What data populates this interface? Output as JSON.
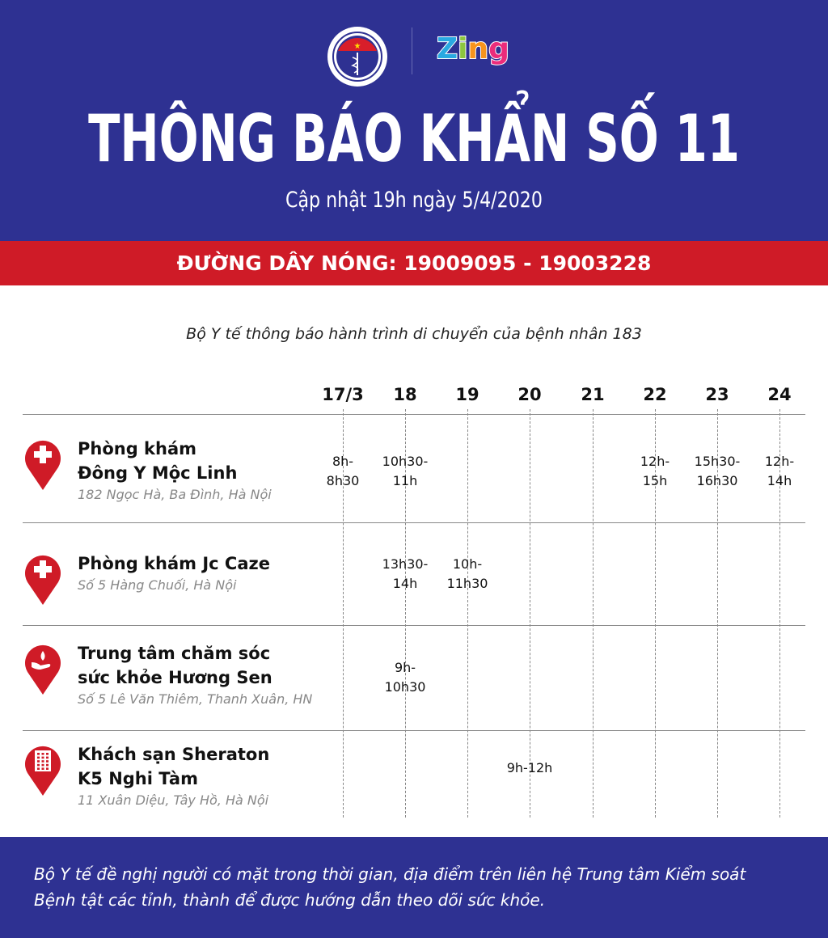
{
  "header": {
    "logo_moh_text": "BỘ Y TẾ MINISTRY OF HEALTH",
    "logo_zing_text": "Zing",
    "title": "THÔNG BÁO KHẨN SỐ 11",
    "updated": "Cập nhật 19h ngày 5/4/2020",
    "hotline": "ĐƯỜNG DÂY NÓNG: 19009095 - 19003228",
    "colors": {
      "blue": "#2e3192",
      "red": "#cf1b27"
    }
  },
  "subtitle": "Bộ Y tế thông báo hành trình di chuyển của bệnh nhân 183",
  "days": [
    "17/3",
    "18",
    "19",
    "20",
    "21",
    "22",
    "23",
    "24"
  ],
  "places": [
    {
      "name": "Phòng khám\nĐông Y Mộc Linh",
      "address": "182 Ngọc Hà, Ba Đình, Hà Nội",
      "icon": "medical-cross-pin-icon",
      "times": [
        {
          "day": "17/3",
          "text": "8h-\n8h30"
        },
        {
          "day": "18",
          "text": "10h30-\n11h"
        },
        {
          "day": "22",
          "text": "12h-\n15h"
        },
        {
          "day": "23",
          "text": "15h30-\n16h30"
        },
        {
          "day": "24",
          "text": "12h-\n14h"
        }
      ]
    },
    {
      "name": "Phòng khám Jc Caze",
      "address": "Số 5 Hàng Chuối, Hà Nội",
      "icon": "medical-cross-pin-icon",
      "times": [
        {
          "day": "18",
          "text": "13h30-\n14h"
        },
        {
          "day": "19",
          "text": "10h-\n11h30"
        }
      ]
    },
    {
      "name": "Trung tâm chăm sóc\nsức khỏe Hương Sen",
      "address": "Số 5 Lê Văn Thiêm, Thanh Xuân, HN",
      "icon": "care-hand-pin-icon",
      "times": [
        {
          "day": "18",
          "text": "9h-\n10h30"
        }
      ]
    },
    {
      "name": "Khách sạn Sheraton\nK5 Nghi Tàm",
      "address": "11 Xuân Diệu, Tây Hồ, Hà Nội",
      "icon": "hotel-building-pin-icon",
      "times": [
        {
          "day": "20",
          "text": "9h-12h"
        }
      ]
    }
  ],
  "footer": "Bộ Y tế đề nghị người có mặt trong thời gian, địa điểm trên liên hệ Trung tâm Kiểm soát\nBệnh tật các tỉnh, thành để được hướng dẫn theo dõi sức khỏe."
}
